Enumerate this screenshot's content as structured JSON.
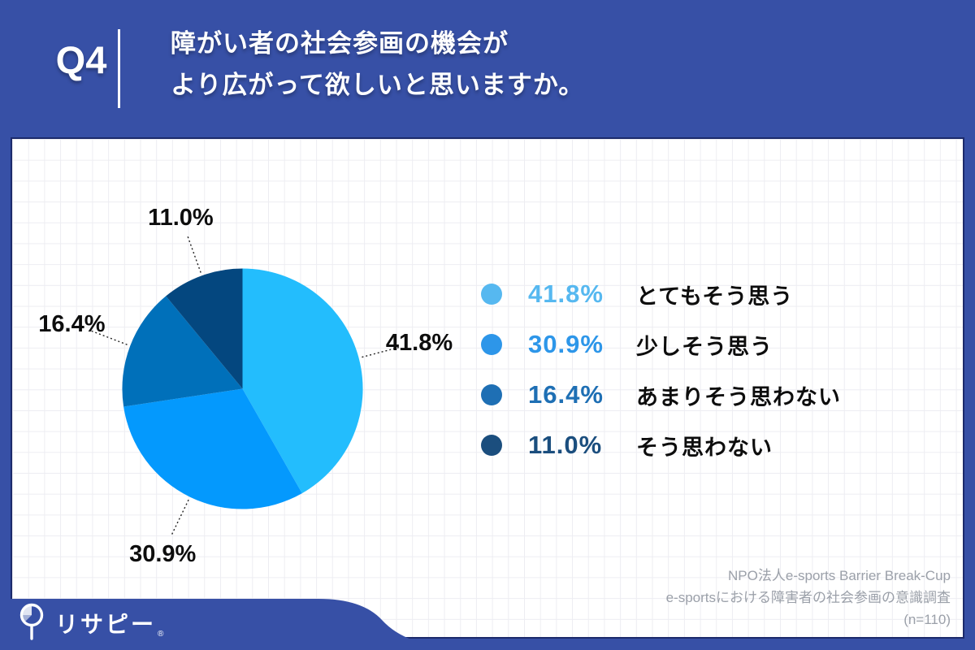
{
  "header": {
    "question_number": "Q4",
    "title_line1": "障がい者の社会参画の機会が",
    "title_line2": "より広がって欲しいと思いますか。"
  },
  "chart_data": {
    "type": "pie",
    "title": "障がい者の社会参画の機会がより広がって欲しいと思いますか。",
    "categories": [
      "とてもそう思う",
      "少しそう思う",
      "あまりそう思わない",
      "そう思わない"
    ],
    "values": [
      41.8,
      30.9,
      16.4,
      11.0
    ],
    "labels": [
      "41.8%",
      "30.9%",
      "16.4%",
      "11.0%"
    ],
    "unit": "%",
    "start_angle_deg": 0,
    "direction": "clockwise",
    "slice_colors": [
      "#23BDFD",
      "#0499FD",
      "#0070BA",
      "#04477F"
    ],
    "leader_line_color": "#222222",
    "legend_position": "right"
  },
  "legend": {
    "items": [
      {
        "pct": "41.8%",
        "label": "とてもそう思う",
        "color": "#56B8F0"
      },
      {
        "pct": "30.9%",
        "label": "少しそう思う",
        "color": "#2D96E9"
      },
      {
        "pct": "16.4%",
        "label": "あまりそう思わない",
        "color": "#1E6FB4"
      },
      {
        "pct": "11.0%",
        "label": "そう思わない",
        "color": "#1B4E7E"
      }
    ]
  },
  "footer": {
    "line1": "NPO法人e-sports Barrier Break-Cup",
    "line2": "e-sportsにおける障害者の社会参画の意識調査",
    "line3": "(n=110)"
  },
  "logo": {
    "text": "リサピー",
    "registered_mark": "®"
  },
  "colors": {
    "frame_blue": "#3750A6",
    "panel_border_navy": "#1C2A6B",
    "grid_line": "#EDEDF2",
    "footer_gray": "#9BA0A9"
  }
}
